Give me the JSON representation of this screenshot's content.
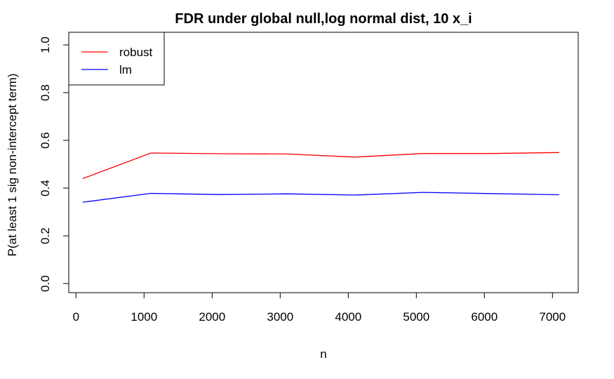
{
  "chart_data": {
    "type": "line",
    "title": "FDR under global null,log normal dist, 10 x_i",
    "xlabel": "n",
    "ylabel": "P(at least 1 sig non-intercept term)",
    "x": [
      100,
      1100,
      2100,
      3100,
      4100,
      5100,
      6100,
      7100
    ],
    "xlim": [
      100,
      7100
    ],
    "ylim": [
      0,
      1
    ],
    "x_ticks": [
      0,
      1000,
      2000,
      3000,
      4000,
      5000,
      6000,
      7000
    ],
    "y_ticks": [
      0.0,
      0.2,
      0.4,
      0.6,
      0.8,
      1.0
    ],
    "x_tick_labels": [
      "0",
      "1000",
      "2000",
      "3000",
      "4000",
      "5000",
      "6000",
      "7000"
    ],
    "y_tick_labels": [
      "0.0",
      "0.2",
      "0.4",
      "0.6",
      "0.8",
      "1.0"
    ],
    "grid": false,
    "legend_position": "top-left",
    "series": [
      {
        "name": "robust",
        "color": "#ff0000",
        "values": [
          0.44,
          0.547,
          0.544,
          0.543,
          0.53,
          0.545,
          0.545,
          0.549
        ]
      },
      {
        "name": "lm",
        "color": "#0000ff",
        "values": [
          0.341,
          0.378,
          0.373,
          0.376,
          0.371,
          0.382,
          0.377,
          0.372
        ]
      }
    ]
  }
}
